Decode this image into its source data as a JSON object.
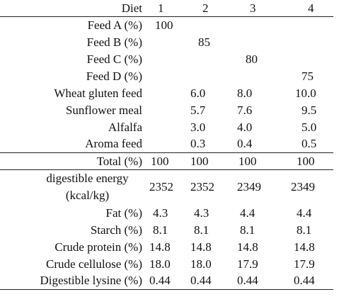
{
  "table": {
    "header": {
      "label": "Diet",
      "cols": [
        "1",
        "2",
        "3",
        "4"
      ]
    },
    "ingredients": [
      {
        "label": "Feed A (%)",
        "values": [
          "100",
          "",
          "",
          ""
        ]
      },
      {
        "label": "Feed B (%)",
        "values": [
          "",
          "85",
          "",
          ""
        ]
      },
      {
        "label": "Feed C (%)",
        "values": [
          "",
          "",
          "80",
          ""
        ]
      },
      {
        "label": "Feed D (%)",
        "values": [
          "",
          "",
          "",
          "75"
        ]
      },
      {
        "label": "Wheat gluten feed",
        "values": [
          "",
          "6.0",
          "8.0",
          "10.0"
        ]
      },
      {
        "label": "Sunflower meal",
        "values": [
          "",
          "5.7",
          "7.6",
          "9.5"
        ]
      },
      {
        "label": "Alfalfa",
        "values": [
          "",
          "3.0",
          "4.0",
          "5.0"
        ]
      },
      {
        "label": "Aroma feed",
        "values": [
          "",
          "0.3",
          "0.4",
          "0.5"
        ]
      }
    ],
    "total": {
      "label": "Total (%)",
      "values": [
        "100",
        "100",
        "100",
        "100"
      ]
    },
    "energy": {
      "label_line1": "digestible energy",
      "label_line2": "(kcal/kg)",
      "values": [
        "2352",
        "2352",
        "2349",
        "2349"
      ]
    },
    "nutrients": [
      {
        "label": "Fat (%)",
        "values": [
          "4.3",
          "4.3",
          "4.4",
          "4.4"
        ]
      },
      {
        "label": "Starch (%)",
        "values": [
          "8.1",
          "8.1",
          "8.1",
          "8.1"
        ]
      },
      {
        "label": "Crude protein  (%)",
        "values": [
          "14.8",
          "14.8",
          "14.8",
          "14.8"
        ]
      },
      {
        "label": "Crude cellulose  (%)",
        "values": [
          "18.0",
          "18.0",
          "17.9",
          "17.9"
        ]
      },
      {
        "label": "Digestible lysine (%)",
        "values": [
          "0.44",
          "0.44",
          "0.44",
          "0.44"
        ]
      }
    ]
  }
}
